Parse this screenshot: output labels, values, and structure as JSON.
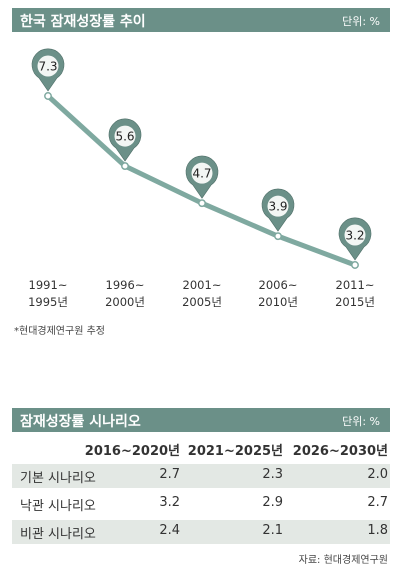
{
  "chart_data": {
    "type": "line",
    "title": "한국 잠재성장률 추이",
    "unit": "단위: %",
    "categories": [
      {
        "line1": "1991~",
        "line2": "1995년"
      },
      {
        "line1": "1996~",
        "line2": "2000년"
      },
      {
        "line1": "2001~",
        "line2": "2005년"
      },
      {
        "line1": "2006~",
        "line2": "2010년"
      },
      {
        "line1": "2011~",
        "line2": "2015년"
      }
    ],
    "values": [
      7.3,
      5.6,
      4.7,
      3.9,
      3.2
    ],
    "labels": [
      "7.3",
      "5.6",
      "4.7",
      "3.9",
      "3.2"
    ],
    "note": "*현대경제연구원 추정",
    "colors": {
      "line": "#7fa9a0",
      "marker": "#6b9088",
      "header": "#6b9088"
    }
  },
  "table": {
    "title": "잠재성장률 시나리오",
    "unit": "단위: %",
    "columns": [
      "2016~2020년",
      "2021~2025년",
      "2026~2030년"
    ],
    "rows": [
      {
        "label": "기본 시나리오",
        "values": [
          "2.7",
          "2.3",
          "2.0"
        ]
      },
      {
        "label": "낙관 시나리오",
        "values": [
          "3.2",
          "2.9",
          "2.7"
        ]
      },
      {
        "label": "비관 시나리오",
        "values": [
          "2.4",
          "2.1",
          "1.8"
        ]
      }
    ],
    "source": "자료: 현대경제연구원"
  }
}
